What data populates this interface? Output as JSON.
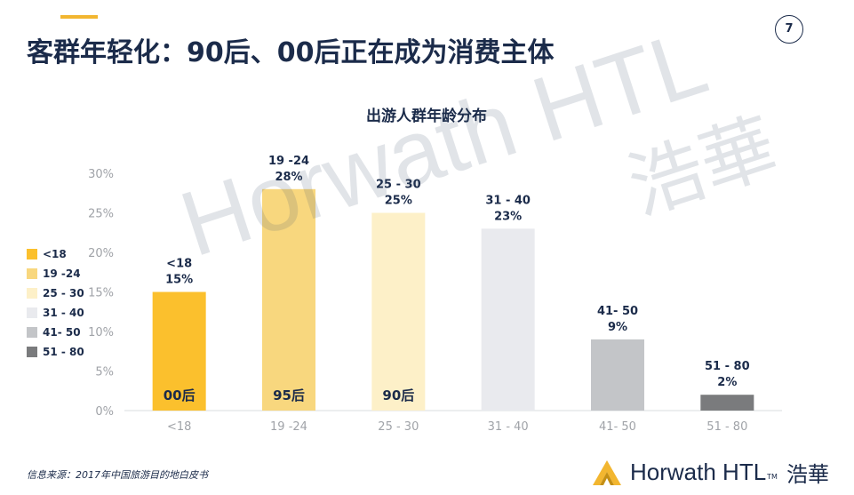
{
  "slide": {
    "title": "客群年轻化：90后、00后正在成为消费主体",
    "page_number": "7",
    "accent_color": "#f2b630"
  },
  "chart_data": {
    "type": "bar",
    "title": "出游人群年龄分布",
    "categories": [
      "<18",
      "19 -24",
      "25 - 30",
      "31 - 40",
      "41- 50",
      "51 - 80"
    ],
    "values": [
      15,
      28,
      25,
      23,
      9,
      2
    ],
    "value_labels": [
      "15%",
      "28%",
      "25%",
      "23%",
      "9%",
      "2%"
    ],
    "top_labels": [
      "<18",
      "19 -24",
      "25 - 30",
      "31 - 40",
      "41- 50",
      "51 - 80"
    ],
    "tick_labels": [
      "<18",
      "19 -24",
      "25 - 30",
      "31 - 40",
      "41- 50",
      "51 - 80"
    ],
    "inner_labels": [
      "00后",
      "95后",
      "90后",
      "",
      "",
      ""
    ],
    "colors": [
      "#fbc02d",
      "#f8d77e",
      "#fdf0c8",
      "#e9eaee",
      "#c3c5c8",
      "#7a7b7d"
    ],
    "ylim": [
      0,
      30
    ],
    "yticks": [
      "0%",
      "5%",
      "10%",
      "15%",
      "20%",
      "25%",
      "30%"
    ],
    "legend": [
      "<18",
      "19 -24",
      "25 - 30",
      "31 - 40",
      "41- 50",
      "51 - 80"
    ],
    "legend_position": "left",
    "grid": false
  },
  "watermark": {
    "text": "Horwath HTL",
    "chinese": "浩華"
  },
  "footer": {
    "source": "信息来源：2017年中国旅游目的地白皮书",
    "logo_text": "Horwath HTL",
    "logo_tm": "TM",
    "logo_chinese": "浩華"
  }
}
